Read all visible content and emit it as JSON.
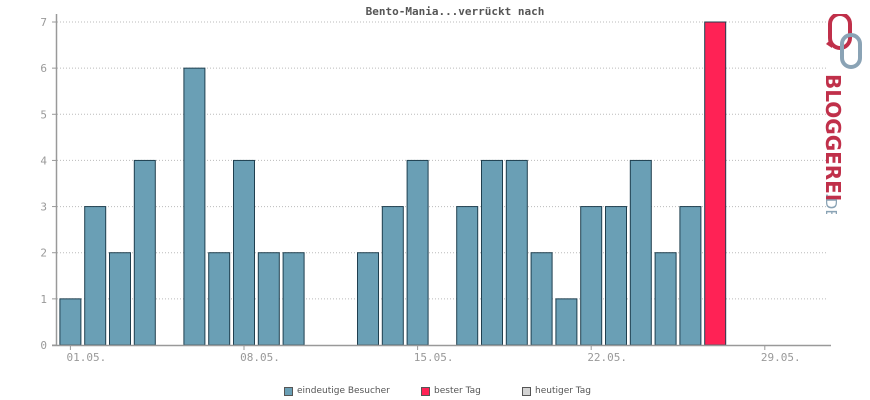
{
  "chart_data": {
    "type": "bar",
    "title": "Bento-Mania...verrückt nach",
    "x_tick_labels": [
      "01.05.",
      "08.05.",
      "15.05.",
      "22.05.",
      "29.05."
    ],
    "x_tick_days": [
      1,
      8,
      15,
      22,
      29
    ],
    "y_ticks": [
      0,
      1,
      2,
      3,
      4,
      5,
      6,
      7
    ],
    "ylim": [
      0,
      7
    ],
    "days_in_month": 31,
    "grid": true,
    "series": [
      {
        "name": "eindeutige Besucher",
        "color": "#6a9fb5",
        "days": [
          1,
          2,
          3,
          4,
          6,
          7,
          8,
          9,
          10,
          13,
          14,
          15,
          17,
          18,
          19,
          20,
          21,
          22,
          23,
          24,
          25,
          26
        ],
        "values": [
          1,
          3,
          2,
          4,
          6,
          2,
          4,
          2,
          2,
          2,
          3,
          4,
          3,
          4,
          4,
          2,
          1,
          3,
          3,
          4,
          2,
          3
        ]
      },
      {
        "name": "bester Tag",
        "color": "#ff2255",
        "days": [
          27
        ],
        "values": [
          7
        ]
      },
      {
        "name": "heutiger Tag",
        "color": "#d3d3d3",
        "days": [],
        "values": []
      }
    ],
    "legend_position": "bottom"
  },
  "brand": {
    "text_main": "BLOGGEREI",
    "text_suffix": ".DE",
    "logo_color": "#c0304a",
    "logo_secondary_color": "#8aa3b5"
  }
}
